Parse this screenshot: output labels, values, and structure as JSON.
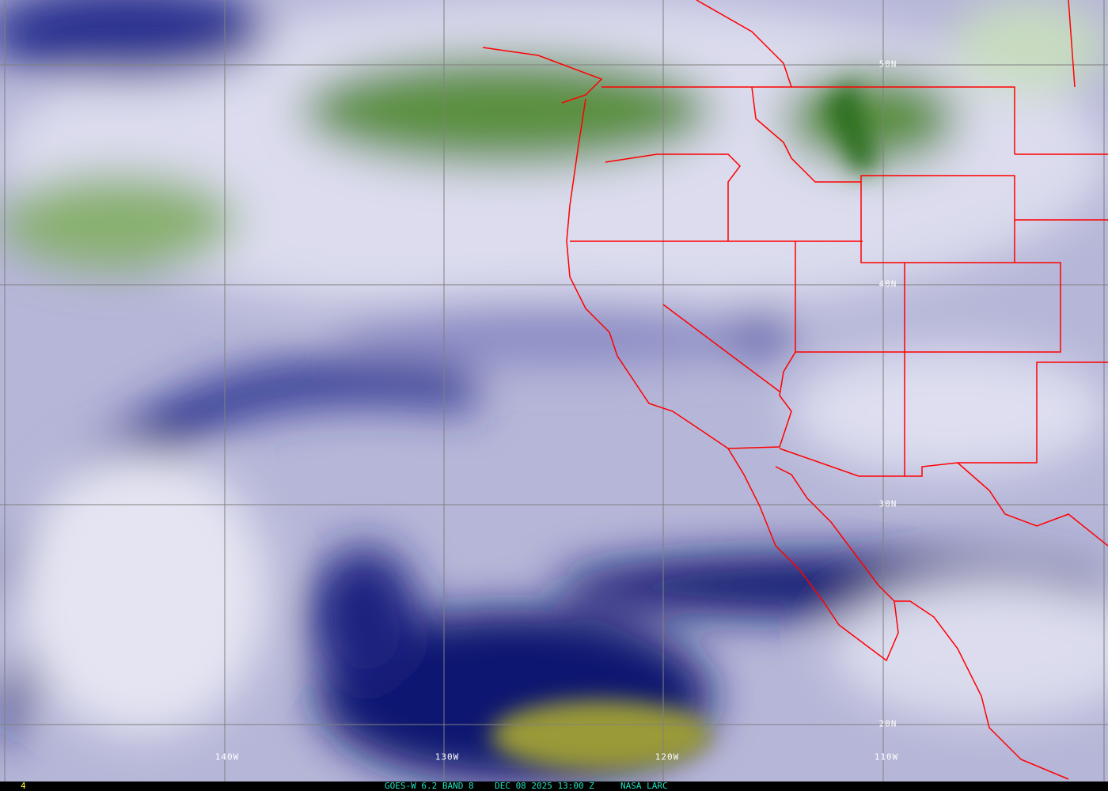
{
  "image": {
    "satellite": "GOES-W",
    "product": "6.2 BAND 8",
    "colors": {
      "dry": "#0a1470",
      "moist": "#e8e8f4",
      "very_moist": "#3c7a28",
      "very_dry": "#8a8a30",
      "borders": "#ff0000",
      "grid": "#808080"
    }
  },
  "grid_labels": {
    "lat": [
      "50N",
      "40N",
      "30N",
      "20N"
    ],
    "lon": [
      "140W",
      "130W",
      "120W",
      "110W"
    ]
  },
  "footer": {
    "frame": "4",
    "caption": "GOES-W 6.2 BAND 8    DEC 08 2025 13:00 Z     NASA LARC"
  }
}
